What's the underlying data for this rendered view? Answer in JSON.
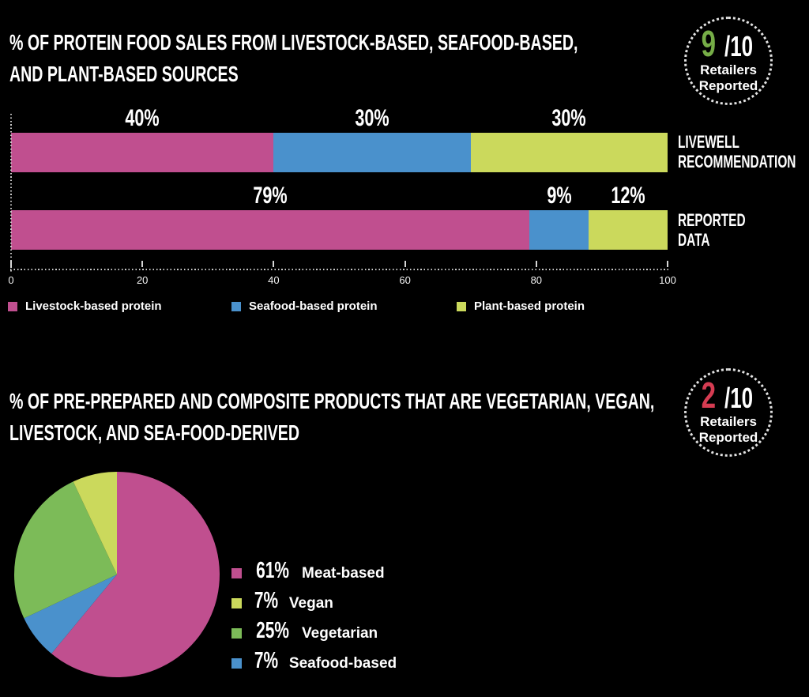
{
  "page": {
    "background": "#000000"
  },
  "section_protein_sales": {
    "title_line1": "% OF PROTEIN FOOD SALES FROM LIVESTOCK-BASED, SEAFOOD-BASED,",
    "title_line2": "AND PLANT-BASED SOURCES",
    "badge": {
      "numerator": "9",
      "slash_denominator": "/10",
      "line1": "Retailers",
      "line2": "Reported",
      "numerator_color": "#76ad47"
    }
  },
  "section_prepared_products": {
    "title_line1": "% OF PRE-PREPARED AND COMPOSITE PRODUCTS THAT ARE VEGETARIAN, VEGAN,",
    "title_line2": "LIVESTOCK, AND SEA-FOOD-DERIVED",
    "badge": {
      "numerator": "2",
      "slash_denominator": "/10",
      "line1": "Retailers",
      "line2": "Reported",
      "numerator_color": "#d63c52"
    }
  },
  "chart_data": [
    {
      "type": "bar",
      "stacked": true,
      "orientation": "horizontal",
      "title": "% OF PROTEIN FOOD SALES FROM LIVESTOCK-BASED, SEAFOOD-BASED, AND PLANT-BASED SOURCES",
      "categories": [
        "LIVEWELL RECOMMENDATION",
        "REPORTED DATA"
      ],
      "category_lines": [
        [
          "LIVEWELL",
          "RECOMMENDATION"
        ],
        [
          "REPORTED",
          "DATA"
        ]
      ],
      "series": [
        {
          "name": "Livestock-based protein",
          "color": "#c04f8f",
          "values": [
            40,
            79
          ]
        },
        {
          "name": "Seafood-based protein",
          "color": "#4a91cc",
          "values": [
            30,
            9
          ]
        },
        {
          "name": "Plant-based protein",
          "color": "#cbd95c",
          "values": [
            30,
            12
          ]
        }
      ],
      "value_labels": [
        [
          "40%",
          "30%",
          "30%"
        ],
        [
          "79%",
          "9%",
          "12%"
        ]
      ],
      "xlim": [
        0,
        100
      ],
      "x_ticks": [
        "0",
        "20",
        "40",
        "60",
        "80",
        "100"
      ],
      "grid": false,
      "legend_position": "bottom"
    },
    {
      "type": "pie",
      "title": "% OF PRE-PREPARED AND COMPOSITE PRODUCTS THAT ARE VEGETARIAN, VEGAN, LIVESTOCK, AND SEA-FOOD-DERIVED",
      "start_angle": "12-oclock-clockwise",
      "slices": [
        {
          "label": "Meat-based",
          "value": 61,
          "color": "#c04f8f"
        },
        {
          "label": "Seafood-based",
          "value": 7,
          "color": "#4a91cc"
        },
        {
          "label": "Vegetarian",
          "value": 25,
          "color": "#7cbb58"
        },
        {
          "label": "Vegan",
          "value": 7,
          "color": "#cbd95c"
        }
      ],
      "legend": [
        {
          "percent_label": "61%",
          "label": "Meat-based",
          "color": "#c04f8f"
        },
        {
          "percent_label": "7%",
          "label": "Vegan",
          "color": "#cbd95c"
        },
        {
          "percent_label": "25%",
          "label": "Vegetarian",
          "color": "#7cbb58"
        },
        {
          "percent_label": "7%",
          "label": "Seafood-based",
          "color": "#4a91cc"
        }
      ],
      "legend_position": "right"
    }
  ]
}
